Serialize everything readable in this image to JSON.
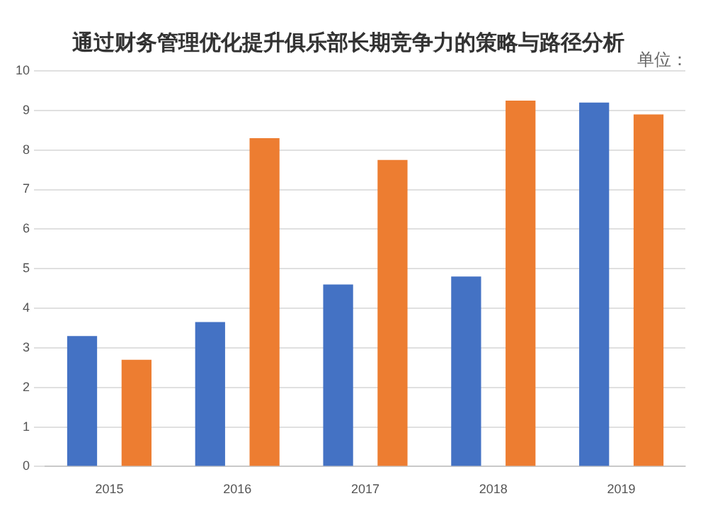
{
  "chart_data": {
    "type": "bar",
    "title": "通过财务管理优化提升俱乐部长期竞争力的策略与路径分析",
    "annotations": [
      "单位："
    ],
    "categories": [
      "2015",
      "2016",
      "2017",
      "2018",
      "2019"
    ],
    "series": [
      {
        "color": "#4472c4",
        "values": [
          3.3,
          3.65,
          4.6,
          4.8,
          9.2
        ]
      },
      {
        "color": "#ed7d31",
        "values": [
          2.7,
          8.3,
          7.75,
          9.25,
          8.9
        ]
      }
    ],
    "ylim": [
      0,
      10
    ],
    "yticks": [
      0,
      1,
      2,
      3,
      4,
      5,
      6,
      7,
      8,
      9,
      10
    ],
    "grid": "y",
    "legend": false
  }
}
